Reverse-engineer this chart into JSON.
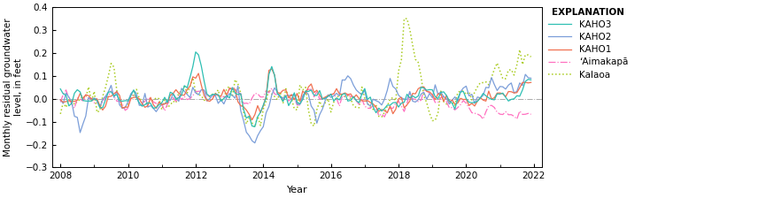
{
  "title": "",
  "ylabel": "Monthly residual groundwater\nlevel, in feet",
  "xlabel": "Year",
  "xlim": [
    2007.75,
    2022.25
  ],
  "ylim": [
    -0.3,
    0.4
  ],
  "yticks": [
    -0.3,
    -0.2,
    -0.1,
    0.0,
    0.1,
    0.2,
    0.3,
    0.4
  ],
  "xticks": [
    2008,
    2010,
    2012,
    2014,
    2016,
    2018,
    2020,
    2022
  ],
  "legend_title": "EXPLANATION",
  "series": {
    "KAHO3": {
      "color": "#2EBFB3",
      "linestyle": "-",
      "linewidth": 0.9,
      "zorder": 4
    },
    "KAHO2": {
      "color": "#7B9ED9",
      "linestyle": "-",
      "linewidth": 0.9,
      "zorder": 3
    },
    "KAHO1": {
      "color": "#F07050",
      "linestyle": "-",
      "linewidth": 0.9,
      "zorder": 4
    },
    "Aimakapu": {
      "color": "#FF70C0",
      "linestyle": "-.",
      "linewidth": 0.9,
      "zorder": 2
    },
    "Kalaoa": {
      "color": "#AACC22",
      "linestyle": ":",
      "linewidth": 1.1,
      "zorder": 2
    }
  },
  "zero_line_color": "#AAAAAA",
  "zero_line_style": "-.",
  "background_color": "#FFFFFF",
  "figsize": [
    8.65,
    2.24
  ],
  "dpi": 100
}
